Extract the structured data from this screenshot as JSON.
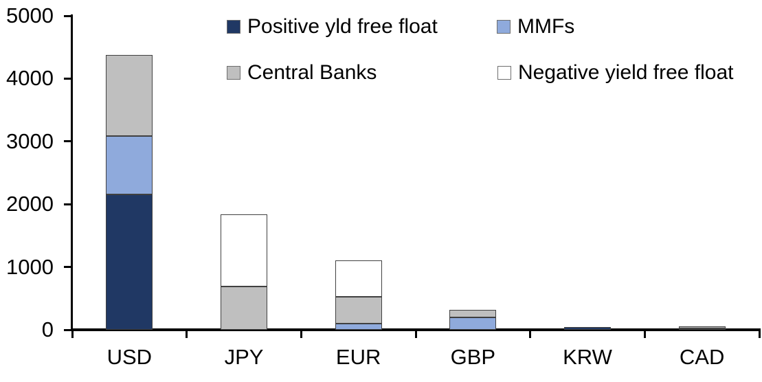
{
  "chart_data": {
    "type": "bar",
    "stacked": true,
    "title": "",
    "xlabel": "",
    "ylabel": "",
    "categories": [
      "USD",
      "JPY",
      "EUR",
      "GBP",
      "KRW",
      "CAD"
    ],
    "series": [
      {
        "name": "Positive yld free float",
        "color": "#203864",
        "values": [
          2150,
          0,
          0,
          0,
          40,
          25
        ]
      },
      {
        "name": "MMFs",
        "color": "#8FAADC",
        "values": [
          930,
          0,
          100,
          200,
          0,
          0
        ]
      },
      {
        "name": "Central Banks",
        "color": "#BFBFBF",
        "values": [
          1300,
          690,
          430,
          120,
          0,
          35
        ]
      },
      {
        "name": "Negative yield free float",
        "color": "#FFFFFF",
        "values": [
          0,
          1150,
          580,
          0,
          0,
          0
        ]
      }
    ],
    "totals": {
      "USD": 4380,
      "JPY": 1840,
      "EUR": 1110,
      "GBP": 320,
      "KRW": 40,
      "CAD": 60
    },
    "ylim": [
      0,
      5000
    ],
    "yticks": [
      0,
      1000,
      2000,
      3000,
      4000,
      5000
    ],
    "gridlines": false,
    "legend_position": "top",
    "legend_rows": [
      [
        "Positive yld free float",
        "MMFs"
      ],
      [
        "Central Banks",
        "Negative yield free float"
      ]
    ],
    "axis_color": "#000000",
    "segment_border_color": "#404040",
    "background_color": "#FFFFFF"
  }
}
